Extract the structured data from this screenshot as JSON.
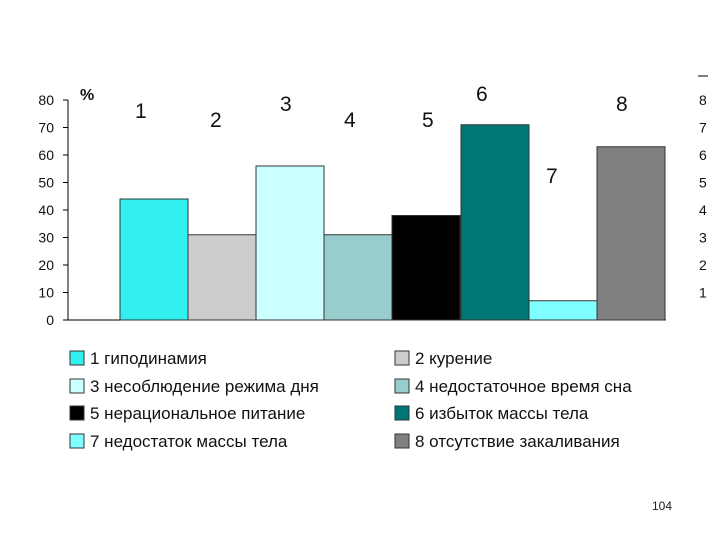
{
  "chart_data": {
    "type": "bar",
    "unit_label": "%",
    "ylim": [
      0,
      80
    ],
    "yticks": [
      "0",
      "10",
      "20",
      "30",
      "40",
      "50",
      "60",
      "70",
      "80"
    ],
    "right_axis_ticks": [
      "8",
      "7",
      "6",
      "5",
      "4",
      "3",
      "2",
      "1"
    ],
    "grid": false,
    "legend_position": "bottom",
    "categories": [
      "1",
      "2",
      "3",
      "4",
      "5",
      "6",
      "7",
      "8"
    ],
    "values": [
      44,
      31,
      56,
      31,
      38,
      71,
      7,
      63
    ],
    "colors": [
      "#33F0F0",
      "#CCCCCC",
      "#CCFFFF",
      "#99CCCC",
      "#000000",
      "#007777",
      "#7FFFFF",
      "#808080"
    ],
    "legend": [
      "1 гиподинамия",
      "2 курение",
      "3 несоблюдение режима дня",
      "4 недостаточное время сна",
      "5 нерациональное питание",
      "6 избыток массы тела",
      "7 недостаток массы тела",
      "8 отсутствие закаливания"
    ]
  },
  "page_number": "104"
}
